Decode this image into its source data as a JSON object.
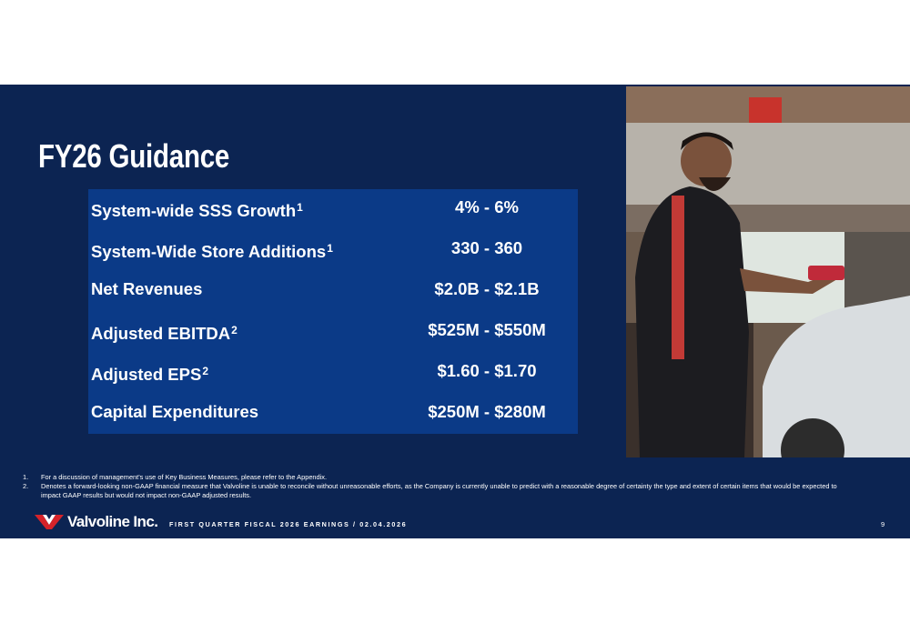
{
  "slide": {
    "title": "FY26 Guidance",
    "rows": [
      {
        "label": "System-wide SSS Growth",
        "sup": "1",
        "value": "4% - 6%"
      },
      {
        "label": "System-Wide Store Additions",
        "sup": "1",
        "value": "330 - 360"
      },
      {
        "label": "Net Revenues",
        "value": "$2.0B - $2.1B"
      },
      {
        "label": "Adjusted EBITDA",
        "sup": "2",
        "value": "$525M - $550M"
      },
      {
        "label": "Adjusted EPS",
        "sup": "2",
        "value": "$1.60 - $1.70"
      },
      {
        "label": "Capital Expenditures",
        "value": "$250M - $280M"
      }
    ],
    "footnotes": [
      {
        "number": "1.",
        "text": "For a discussion of management's use of Key Business Measures, please refer to the Appendix."
      },
      {
        "number": "2.",
        "text": "Denotes a forward-looking non-GAAP financial measure that Valvoline is unable to reconcile without unreasonable efforts, as the Company is currently unable to predict with a reasonable degree of certainty the type and extent of certain items that would be expected to impact GAAP results but would not impact non-GAAP adjusted results."
      }
    ],
    "footer": {
      "logo": "Valvoline Inc.",
      "text": "FIRST QUARTER FISCAL 2026 EARNINGS / 02.04.2026",
      "page": "9"
    }
  }
}
